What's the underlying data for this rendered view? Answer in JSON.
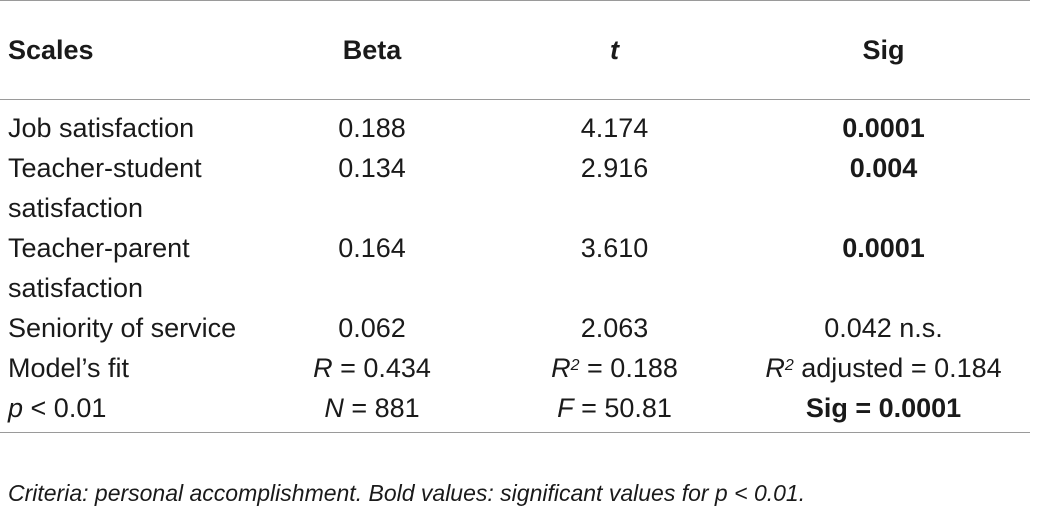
{
  "table": {
    "headers": {
      "scales": "Scales",
      "beta": "Beta",
      "t": "t",
      "sig": "Sig"
    },
    "rows": [
      {
        "scale": "Job satisfaction",
        "beta": "0.188",
        "t": "4.174",
        "sig": "0.0001",
        "sig_bold": true
      },
      {
        "scale": "Teacher-student satisfaction",
        "beta": "0.134",
        "t": "2.916",
        "sig": "0.004",
        "sig_bold": true
      },
      {
        "scale": "Teacher-parent satisfaction",
        "beta": "0.164",
        "t": "3.610",
        "sig": "0.0001",
        "sig_bold": true
      },
      {
        "scale": "Seniority of service",
        "beta": "0.062",
        "t": "2.063",
        "sig": "0.042 n.s.",
        "sig_bold": false
      }
    ],
    "fit_row": {
      "label": "Model’s fit",
      "r_symbol": "R",
      "r_value": " = 0.434",
      "r2_symbol": "R",
      "r2_exp": "2",
      "r2_value": " = 0.188",
      "r2adj_symbol": "R",
      "r2adj_exp": "2",
      "r2adj_value": " adjusted = 0.184"
    },
    "p_row": {
      "p_symbol": "p",
      "p_value": " < 0.01",
      "n_symbol": "N",
      "n_value": " = 881",
      "f_symbol": "F",
      "f_value": " = 50.81",
      "sig_text": "Sig = 0.0001"
    }
  },
  "footnote": "Criteria: personal accomplishment. Bold values: significant values for p < 0.01."
}
